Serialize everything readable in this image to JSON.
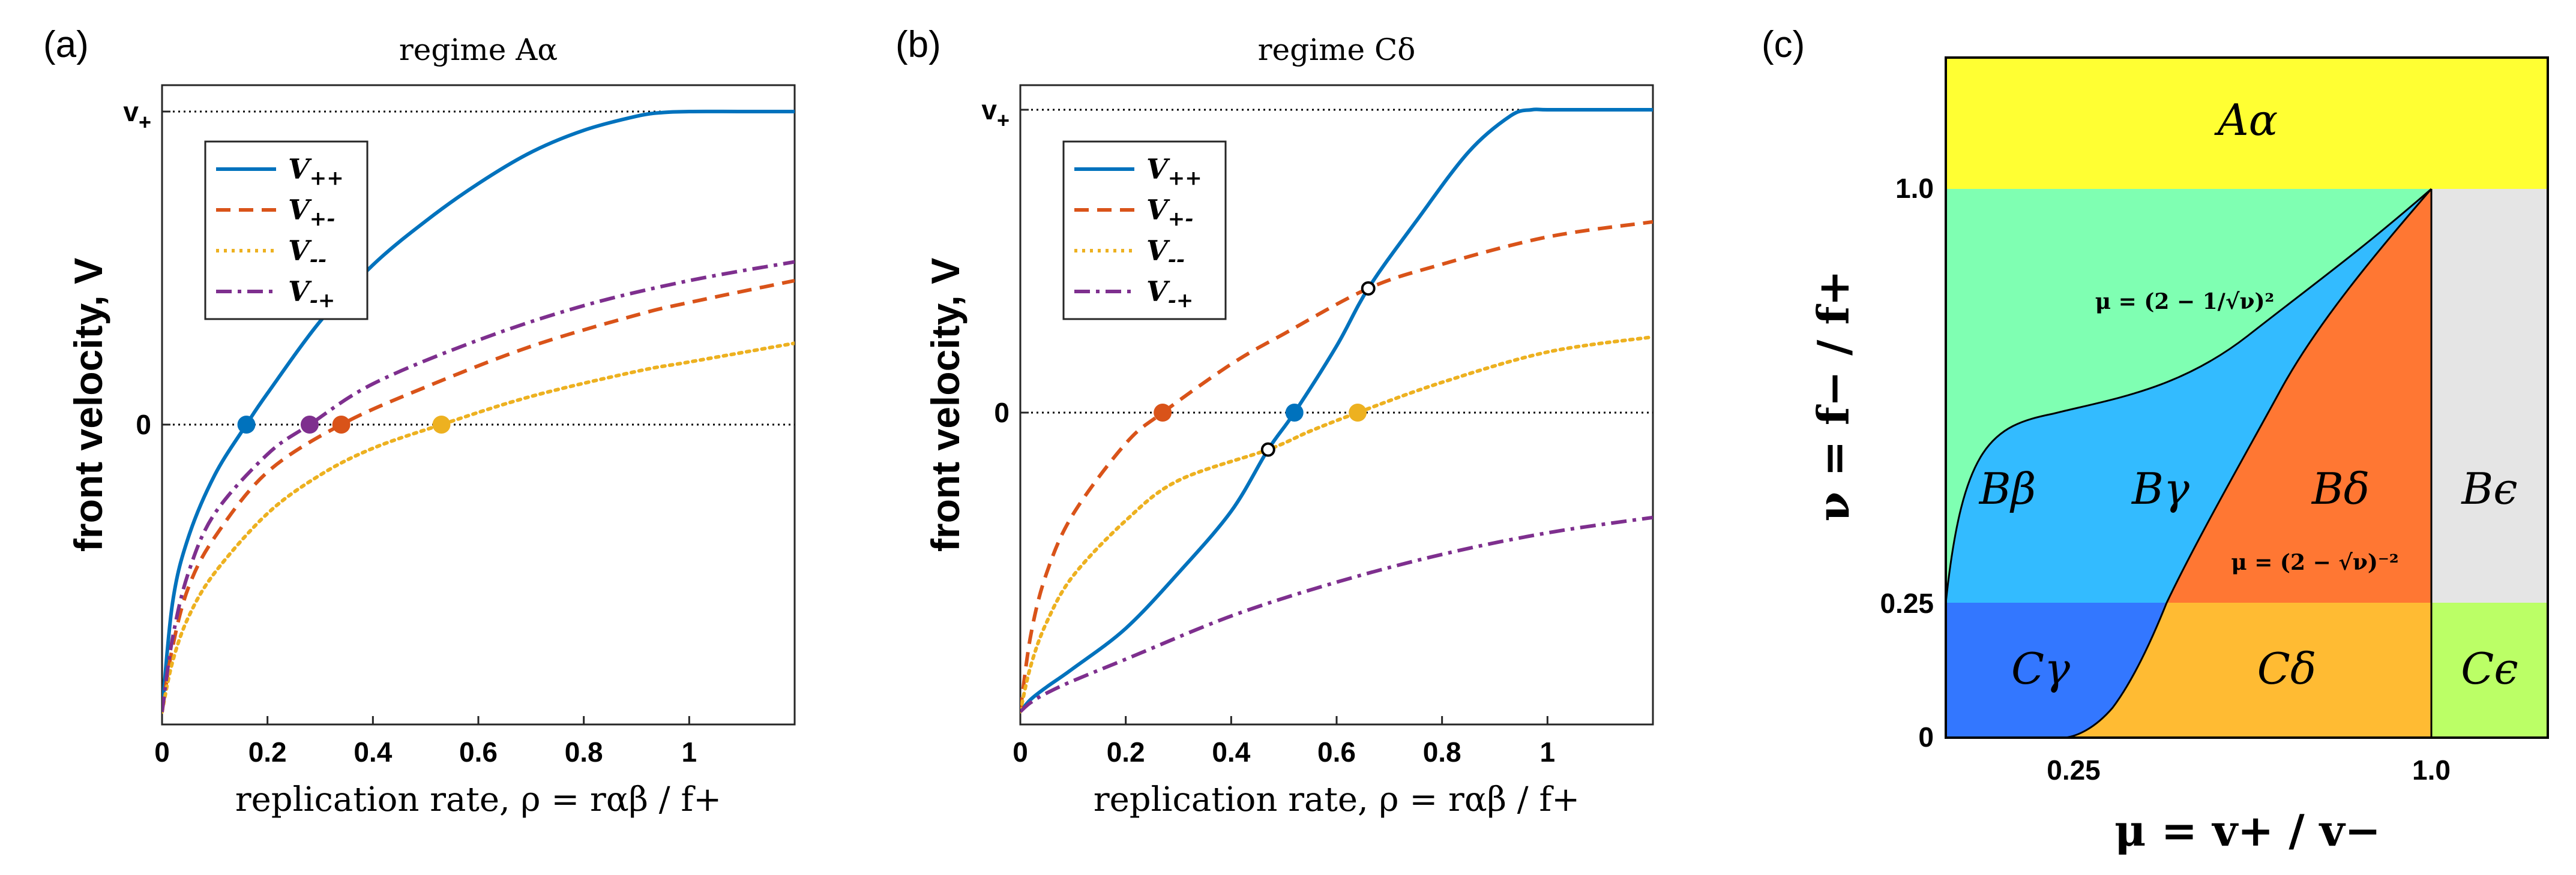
{
  "figure": {
    "panel_labels": [
      "(a)",
      "(b)",
      "(c)"
    ]
  },
  "chart_data": [
    {
      "type": "line",
      "panel": "(a)",
      "title": "regime Aα",
      "xlabel": "replication rate, ρ = rαβ / f+",
      "ylabel": "front velocity, V",
      "xlim": [
        0,
        1.2
      ],
      "ylim": [
        -1,
        1
      ],
      "x_ticks": [
        "0",
        "0.2",
        "0.4",
        "0.6",
        "0.8",
        "1"
      ],
      "y_ticks": [
        "0",
        "v+"
      ],
      "legend_position": "top-left",
      "reference_lines": [
        {
          "y": 0
        },
        {
          "y": 1
        }
      ],
      "series": [
        {
          "name": "V++",
          "color": "#0072BD",
          "style": "solid",
          "x": [
            0,
            0.02,
            0.05,
            0.1,
            0.16,
            0.2,
            0.3,
            0.4,
            0.5,
            0.6,
            0.7,
            0.8,
            0.9,
            0.95,
            1.0,
            1.1,
            1.2
          ],
          "y": [
            -0.97,
            -0.6,
            -0.38,
            -0.17,
            0.0,
            0.1,
            0.33,
            0.51,
            0.65,
            0.77,
            0.87,
            0.94,
            0.985,
            0.997,
            1.0,
            1.0,
            1.0
          ]
        },
        {
          "name": "V+-",
          "color": "#D95319",
          "style": "dashed",
          "x": [
            0,
            0.02,
            0.05,
            0.1,
            0.2,
            0.34,
            0.5,
            0.7,
            0.9,
            1.0,
            1.2
          ],
          "y": [
            -0.97,
            -0.75,
            -0.55,
            -0.38,
            -0.16,
            0.0,
            0.12,
            0.25,
            0.35,
            0.39,
            0.46
          ]
        },
        {
          "name": "V--",
          "color": "#EDB120",
          "style": "dotted",
          "x": [
            0,
            0.02,
            0.05,
            0.1,
            0.2,
            0.3,
            0.4,
            0.53,
            0.7,
            0.9,
            1.0,
            1.2
          ],
          "y": [
            -0.97,
            -0.8,
            -0.65,
            -0.5,
            -0.3,
            -0.17,
            -0.08,
            0.0,
            0.09,
            0.17,
            0.2,
            0.26
          ]
        },
        {
          "name": "V-+",
          "color": "#7E2F8E",
          "style": "dashdot",
          "x": [
            0,
            0.02,
            0.05,
            0.1,
            0.2,
            0.28,
            0.4,
            0.6,
            0.8,
            1.0,
            1.2
          ],
          "y": [
            -0.97,
            -0.72,
            -0.5,
            -0.3,
            -0.1,
            0.0,
            0.13,
            0.27,
            0.38,
            0.46,
            0.52
          ]
        }
      ],
      "markers": [
        {
          "series": "V++",
          "x": 0.16,
          "y": 0,
          "color": "#0072BD",
          "filled": true
        },
        {
          "series": "V-+",
          "x": 0.28,
          "y": 0,
          "color": "#7E2F8E",
          "filled": true
        },
        {
          "series": "V+-",
          "x": 0.34,
          "y": 0,
          "color": "#D95319",
          "filled": true
        },
        {
          "series": "V--",
          "x": 0.53,
          "y": 0,
          "color": "#EDB120",
          "filled": true
        }
      ]
    },
    {
      "type": "line",
      "panel": "(b)",
      "title": "regime Cδ",
      "xlabel": "replication rate, ρ = rαβ / f+",
      "ylabel": "front velocity, V",
      "xlim": [
        0,
        1.2
      ],
      "ylim": [
        -1,
        1
      ],
      "x_ticks": [
        "0",
        "0.2",
        "0.4",
        "0.6",
        "0.8",
        "1"
      ],
      "y_ticks": [
        "0",
        "v+"
      ],
      "legend_position": "top-left",
      "reference_lines": [
        {
          "y": 0
        },
        {
          "y": 1
        }
      ],
      "series": [
        {
          "name": "V++",
          "color": "#0072BD",
          "style": "solid",
          "x": [
            0,
            0.02,
            0.05,
            0.1,
            0.2,
            0.3,
            0.4,
            0.47,
            0.52,
            0.6,
            0.66,
            0.75,
            0.85,
            0.93,
            0.97,
            1.0,
            1.1,
            1.2
          ],
          "y": [
            -0.97,
            -0.93,
            -0.89,
            -0.83,
            -0.7,
            -0.52,
            -0.32,
            -0.12,
            0.0,
            0.22,
            0.41,
            0.63,
            0.86,
            0.98,
            1.0,
            1.0,
            1.0,
            1.0
          ]
        },
        {
          "name": "V+-",
          "color": "#D95319",
          "style": "dashed",
          "x": [
            0,
            0.02,
            0.05,
            0.1,
            0.2,
            0.27,
            0.4,
            0.5,
            0.66,
            0.8,
            1.0,
            1.2
          ],
          "y": [
            -0.97,
            -0.72,
            -0.52,
            -0.33,
            -0.1,
            0.0,
            0.16,
            0.26,
            0.41,
            0.49,
            0.58,
            0.63
          ]
        },
        {
          "name": "V--",
          "color": "#EDB120",
          "style": "dotted",
          "x": [
            0,
            0.02,
            0.05,
            0.1,
            0.2,
            0.3,
            0.47,
            0.55,
            0.64,
            0.8,
            1.0,
            1.2
          ],
          "y": [
            -0.97,
            -0.82,
            -0.68,
            -0.53,
            -0.35,
            -0.22,
            -0.12,
            -0.06,
            0.0,
            0.1,
            0.2,
            0.25
          ]
        },
        {
          "name": "V-+",
          "color": "#7E2F8E",
          "style": "dashdot",
          "x": [
            0,
            0.02,
            0.05,
            0.1,
            0.2,
            0.4,
            0.6,
            0.8,
            1.0,
            1.2
          ],
          "y": [
            -0.97,
            -0.94,
            -0.91,
            -0.87,
            -0.8,
            -0.66,
            -0.55,
            -0.46,
            -0.39,
            -0.34
          ]
        }
      ],
      "markers": [
        {
          "series": "V+-",
          "x": 0.27,
          "y": 0,
          "color": "#D95319",
          "filled": true
        },
        {
          "series": "V++",
          "x": 0.52,
          "y": 0,
          "color": "#0072BD",
          "filled": true
        },
        {
          "series": "V--",
          "x": 0.64,
          "y": 0,
          "color": "#EDB120",
          "filled": true
        },
        {
          "series": "crossing",
          "x": 0.47,
          "y": -0.12,
          "color": "#000000",
          "filled": false
        },
        {
          "series": "crossing",
          "x": 0.66,
          "y": 0.41,
          "color": "#000000",
          "filled": false
        }
      ]
    },
    {
      "type": "heatmap",
      "panel": "(c)",
      "xlabel": "μ = v+ / v−",
      "ylabel": "ν = f− / f+",
      "xlim": [
        0,
        1.25
      ],
      "ylim": [
        0,
        1.35
      ],
      "x_ticks": [
        "0.25",
        "1.0"
      ],
      "y_ticks": [
        "0",
        "0.25",
        "1.0"
      ],
      "regions": [
        {
          "label": "Aα",
          "color": "#FFFF33"
        },
        {
          "label": "Bβ",
          "color": "#7FFFB2"
        },
        {
          "label": "Bγ",
          "color": "#33BBFF"
        },
        {
          "label": "Bδ",
          "color": "#FF7733"
        },
        {
          "label": "Bϵ",
          "color": "#E5E5E5"
        },
        {
          "label": "Cγ",
          "color": "#3377FF"
        },
        {
          "label": "Cδ",
          "color": "#FFBB33"
        },
        {
          "label": "Cϵ",
          "color": "#BBFF66"
        }
      ],
      "boundary_labels": [
        {
          "text": "μ = (2 − 1/√ν)²"
        },
        {
          "text": "μ = (2 − √ν)⁻²"
        }
      ]
    }
  ]
}
